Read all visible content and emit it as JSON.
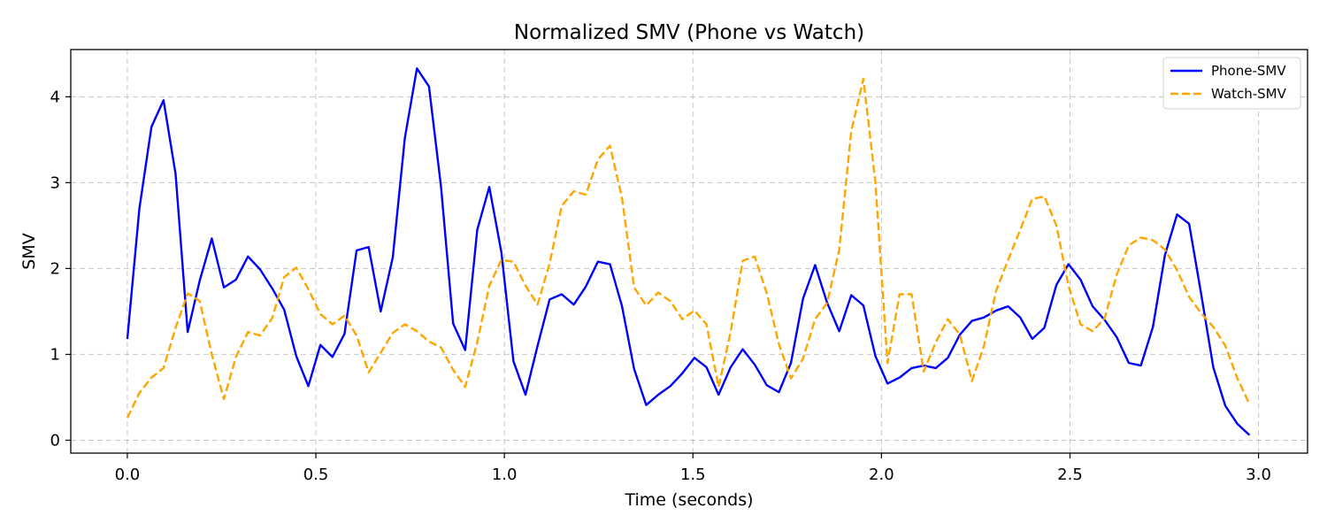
{
  "chart_data": {
    "type": "line",
    "title": "Normalized SMV (Phone vs Watch)",
    "xlabel": "Time (seconds)",
    "ylabel": "SMV",
    "xlim": [
      -0.15,
      3.13
    ],
    "ylim": [
      -0.15,
      4.55
    ],
    "xticks": [
      0.0,
      0.5,
      1.0,
      1.5,
      2.0,
      2.5,
      3.0
    ],
    "xtick_labels": [
      "0.0",
      "0.5",
      "1.0",
      "1.5",
      "2.0",
      "2.5",
      "3.0"
    ],
    "yticks": [
      0,
      1,
      2,
      3,
      4
    ],
    "ytick_labels": [
      "0",
      "1",
      "2",
      "3",
      "4"
    ],
    "grid": true,
    "legend_position": "top-right",
    "x": [
      0.0,
      0.032,
      0.064,
      0.096,
      0.128,
      0.16,
      0.192,
      0.224,
      0.256,
      0.288,
      0.32,
      0.352,
      0.384,
      0.416,
      0.448,
      0.48,
      0.512,
      0.544,
      0.576,
      0.608,
      0.64,
      0.672,
      0.704,
      0.736,
      0.768,
      0.8,
      0.832,
      0.864,
      0.896,
      0.928,
      0.96,
      0.992,
      1.024,
      1.056,
      1.088,
      1.12,
      1.152,
      1.184,
      1.216,
      1.248,
      1.28,
      1.312,
      1.344,
      1.376,
      1.408,
      1.44,
      1.472,
      1.504,
      1.536,
      1.568,
      1.6,
      1.632,
      1.664,
      1.696,
      1.728,
      1.76,
      1.792,
      1.824,
      1.856,
      1.888,
      1.92,
      1.952,
      1.984,
      2.016,
      2.048,
      2.08,
      2.112,
      2.144,
      2.176,
      2.208,
      2.24,
      2.272,
      2.304,
      2.336,
      2.368,
      2.4,
      2.432,
      2.464,
      2.496,
      2.528,
      2.56,
      2.592,
      2.624,
      2.656,
      2.688,
      2.72,
      2.752,
      2.784,
      2.816,
      2.848,
      2.88,
      2.912,
      2.944,
      2.976
    ],
    "series": [
      {
        "name": "Phone-SMV",
        "color": "#0000ff",
        "dash": "solid",
        "values": [
          1.18,
          2.7,
          3.65,
          3.96,
          3.1,
          1.26,
          1.86,
          2.35,
          1.78,
          1.87,
          2.14,
          1.99,
          1.77,
          1.52,
          0.98,
          0.63,
          1.11,
          0.97,
          1.24,
          2.21,
          2.25,
          1.5,
          2.13,
          3.52,
          4.33,
          4.12,
          2.95,
          1.36,
          1.05,
          2.45,
          2.95,
          2.19,
          0.92,
          0.53,
          1.1,
          1.64,
          1.7,
          1.58,
          1.79,
          2.08,
          2.05,
          1.56,
          0.83,
          0.41,
          0.53,
          0.63,
          0.78,
          0.96,
          0.85,
          0.53,
          0.85,
          1.06,
          0.88,
          0.64,
          0.56,
          0.9,
          1.65,
          2.04,
          1.6,
          1.27,
          1.69,
          1.57,
          0.98,
          0.66,
          0.73,
          0.84,
          0.87,
          0.84,
          0.96,
          1.23,
          1.39,
          1.43,
          1.51,
          1.56,
          1.43,
          1.18,
          1.31,
          1.81,
          2.05,
          1.87,
          1.56,
          1.4,
          1.2,
          0.9,
          0.87,
          1.32,
          2.16,
          2.63,
          2.52,
          1.7,
          0.85,
          0.4,
          0.19,
          0.06
        ]
      },
      {
        "name": "Watch-SMV",
        "color": "#ffa500",
        "dash": "dashed",
        "values": [
          0.26,
          0.55,
          0.73,
          0.84,
          1.31,
          1.71,
          1.62,
          1.0,
          0.48,
          0.97,
          1.26,
          1.22,
          1.42,
          1.9,
          2.01,
          1.76,
          1.47,
          1.35,
          1.45,
          1.22,
          0.79,
          1.02,
          1.25,
          1.35,
          1.27,
          1.15,
          1.08,
          0.82,
          0.62,
          1.14,
          1.8,
          2.1,
          2.08,
          1.8,
          1.58,
          2.06,
          2.73,
          2.9,
          2.86,
          3.27,
          3.43,
          2.82,
          1.78,
          1.57,
          1.72,
          1.62,
          1.41,
          1.51,
          1.35,
          0.62,
          1.26,
          2.09,
          2.14,
          1.71,
          1.12,
          0.72,
          0.95,
          1.41,
          1.6,
          2.22,
          3.6,
          4.21,
          3.0,
          0.9,
          1.7,
          1.7,
          0.8,
          1.14,
          1.41,
          1.23,
          0.69,
          1.1,
          1.74,
          2.1,
          2.45,
          2.81,
          2.84,
          2.5,
          1.8,
          1.35,
          1.27,
          1.42,
          1.93,
          2.27,
          2.36,
          2.33,
          2.22,
          1.98,
          1.67,
          1.48,
          1.32,
          1.1,
          0.72,
          0.42
        ]
      }
    ]
  }
}
